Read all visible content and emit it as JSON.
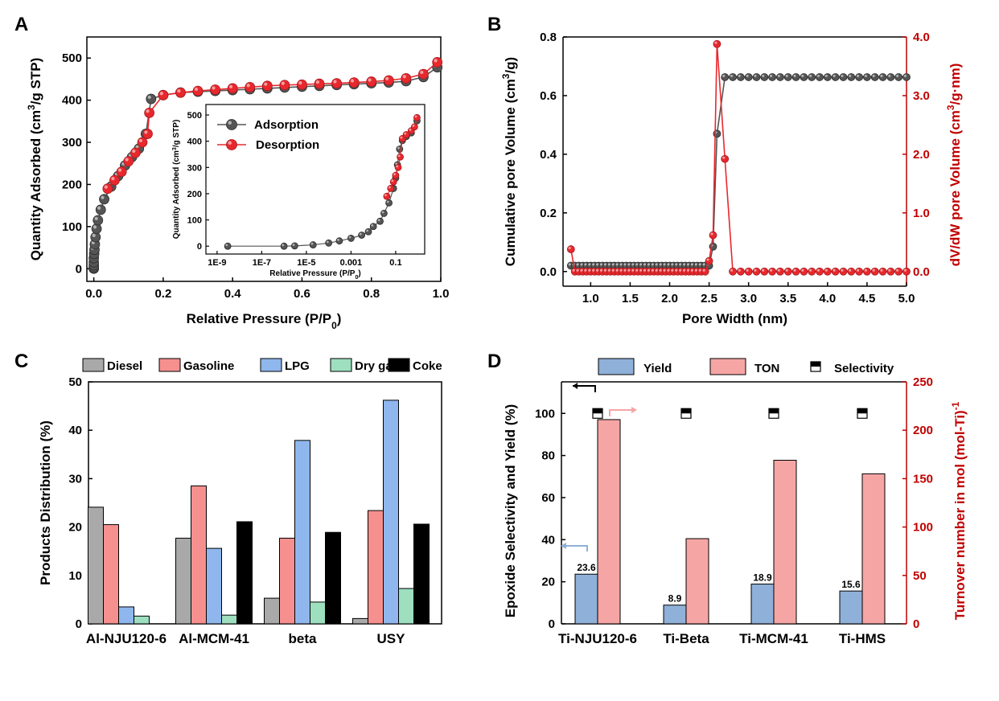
{
  "colors": {
    "gray_series": "#555555",
    "red_series": "#e8282d",
    "dark_red": "#c00000",
    "diesel": "#a9a9a9",
    "gasoline": "#f6908f",
    "lpg": "#8fb7ee",
    "dry_gas": "#9ddfbf",
    "coke": "#000000",
    "yield": "#8fb0d8",
    "ton": "#f6a5a5"
  },
  "panels": {
    "A": {
      "letter": "A"
    },
    "B": {
      "letter": "B"
    },
    "C": {
      "letter": "C"
    },
    "D": {
      "letter": "D"
    }
  },
  "chart_data": [
    {
      "id": "A",
      "type": "line",
      "xlabel": "Relative Pressure (P/P0)",
      "ylabel": "Quantity Adsorbed (cm3/g STP)",
      "xlim": [
        -0.02,
        1.0
      ],
      "ylim": [
        -30,
        550
      ],
      "xticks": [
        "0.0",
        "0.2",
        "0.4",
        "0.6",
        "0.8",
        "1.0"
      ],
      "yticks": [
        "0",
        "100",
        "200",
        "300",
        "400",
        "500"
      ],
      "legend": [
        "Adsorption",
        "Desorption"
      ],
      "series": [
        {
          "name": "Adsorption",
          "x": [
            0.0,
            0.0,
            0.0,
            0.0,
            0.0,
            0.001,
            0.002,
            0.003,
            0.005,
            0.008,
            0.012,
            0.02,
            0.03,
            0.05,
            0.07,
            0.09,
            0.11,
            0.13,
            0.15,
            0.165,
            0.2,
            0.25,
            0.3,
            0.35,
            0.4,
            0.45,
            0.5,
            0.55,
            0.6,
            0.65,
            0.7,
            0.75,
            0.8,
            0.85,
            0.9,
            0.95,
            0.99
          ],
          "y": [
            0,
            3,
            8,
            15,
            25,
            35,
            45,
            58,
            75,
            95,
            115,
            140,
            165,
            195,
            220,
            245,
            265,
            285,
            320,
            403,
            412,
            418,
            420,
            422,
            424,
            426,
            428,
            430,
            432,
            434,
            436,
            438,
            440,
            442,
            445,
            455,
            478
          ]
        },
        {
          "name": "Desorption",
          "x": [
            0.04,
            0.06,
            0.08,
            0.1,
            0.12,
            0.14,
            0.155,
            0.16,
            0.2,
            0.25,
            0.3,
            0.35,
            0.4,
            0.45,
            0.5,
            0.55,
            0.6,
            0.65,
            0.7,
            0.75,
            0.8,
            0.85,
            0.9,
            0.95,
            0.99
          ],
          "y": [
            190,
            210,
            230,
            255,
            275,
            300,
            320,
            370,
            412,
            418,
            422,
            425,
            428,
            431,
            434,
            436,
            437,
            439,
            440,
            442,
            444,
            447,
            452,
            462,
            490
          ]
        }
      ]
    },
    {
      "id": "A-inset",
      "type": "line",
      "xscale": "log",
      "xlabel": "Relative Pressure (P/P0)",
      "ylabel": "Quantity Adsorbed (cm3/g STP)",
      "xticks": [
        "1E-9",
        "1E-7",
        "1E-5",
        "0.001",
        "0.1"
      ],
      "yticks": [
        "0",
        "100",
        "200",
        "300",
        "400",
        "500"
      ],
      "ylim": [
        -30,
        540
      ],
      "series": [
        {
          "name": "Adsorption",
          "x": [
            3e-09,
            1e-06,
            3e-06,
            2e-05,
            0.0001,
            0.0003,
            0.001,
            0.003,
            0.006,
            0.01,
            0.02,
            0.03,
            0.05,
            0.08,
            0.1,
            0.12,
            0.15,
            0.2,
            0.3,
            0.5,
            0.9
          ],
          "y": [
            0,
            0,
            1,
            5,
            12,
            20,
            30,
            42,
            55,
            75,
            95,
            125,
            165,
            220,
            260,
            310,
            370,
            403,
            418,
            432,
            478
          ]
        },
        {
          "name": "Desorption",
          "x": [
            0.04,
            0.06,
            0.08,
            0.1,
            0.13,
            0.16,
            0.2,
            0.3,
            0.5,
            0.7,
            0.9
          ],
          "y": [
            190,
            220,
            245,
            270,
            300,
            340,
            410,
            425,
            440,
            455,
            490
          ]
        }
      ]
    },
    {
      "id": "B",
      "type": "line",
      "xlabel": "Pore Width (nm)",
      "ylabel": "Cumulative pore Volume (cm3/g)",
      "ylabel_right": "dV/dW pore Volume (cm3/g·nm)",
      "xlim": [
        0.65,
        5.0
      ],
      "ylim": [
        -0.05,
        0.8
      ],
      "ylim_right": [
        -0.25,
        4.0
      ],
      "xticks": [
        "1.0",
        "1.5",
        "2.0",
        "2.5",
        "3.0",
        "3.5",
        "4.0",
        "4.5",
        "5.0"
      ],
      "yticks": [
        "0.0",
        "0.2",
        "0.4",
        "0.6",
        "0.8"
      ],
      "yticks_right": [
        "0.0",
        "1.0",
        "2.0",
        "3.0",
        "4.0"
      ],
      "series": [
        {
          "name": "Cumulative",
          "axis": "left",
          "x": [
            0.75,
            0.8,
            0.85,
            0.9,
            0.95,
            1.0,
            1.05,
            1.1,
            1.15,
            1.2,
            1.25,
            1.3,
            1.35,
            1.4,
            1.45,
            1.5,
            1.55,
            1.6,
            1.65,
            1.7,
            1.75,
            1.8,
            1.85,
            1.9,
            1.95,
            2.0,
            2.05,
            2.1,
            2.15,
            2.2,
            2.25,
            2.3,
            2.35,
            2.4,
            2.45,
            2.5,
            2.55,
            2.6,
            2.7,
            2.8,
            2.9,
            3.0,
            3.1,
            3.2,
            3.3,
            3.4,
            3.5,
            3.6,
            3.7,
            3.8,
            3.9,
            4.0,
            4.1,
            4.2,
            4.3,
            4.4,
            4.5,
            4.6,
            4.7,
            4.8,
            4.9,
            5.0
          ],
          "y": [
            0.02,
            0.02,
            0.02,
            0.02,
            0.02,
            0.02,
            0.02,
            0.02,
            0.02,
            0.02,
            0.02,
            0.02,
            0.02,
            0.02,
            0.02,
            0.02,
            0.02,
            0.02,
            0.02,
            0.02,
            0.02,
            0.02,
            0.02,
            0.02,
            0.02,
            0.02,
            0.02,
            0.02,
            0.02,
            0.02,
            0.02,
            0.02,
            0.02,
            0.02,
            0.02,
            0.02,
            0.085,
            0.47,
            0.663,
            0.663,
            0.663,
            0.663,
            0.663,
            0.663,
            0.663,
            0.663,
            0.663,
            0.663,
            0.663,
            0.663,
            0.663,
            0.663,
            0.663,
            0.663,
            0.663,
            0.663,
            0.663,
            0.663,
            0.663,
            0.663,
            0.663,
            0.663
          ]
        },
        {
          "name": "dV/dW",
          "axis": "right",
          "x": [
            0.75,
            0.8,
            0.85,
            0.9,
            0.95,
            1.0,
            1.05,
            1.1,
            1.15,
            1.2,
            1.25,
            1.3,
            1.35,
            1.4,
            1.45,
            1.5,
            1.55,
            1.6,
            1.65,
            1.7,
            1.75,
            1.8,
            1.85,
            1.9,
            1.95,
            2.0,
            2.05,
            2.1,
            2.15,
            2.2,
            2.25,
            2.3,
            2.35,
            2.4,
            2.45,
            2.5,
            2.55,
            2.6,
            2.7,
            2.8,
            2.9,
            3.0,
            3.1,
            3.2,
            3.3,
            3.4,
            3.5,
            3.6,
            3.7,
            3.8,
            3.9,
            4.0,
            4.1,
            4.2,
            4.3,
            4.4,
            4.5,
            4.6,
            4.7,
            4.8,
            4.9,
            5.0
          ],
          "y": [
            0.38,
            0.0,
            0.0,
            0.0,
            0.0,
            0.0,
            0.0,
            0.0,
            0.0,
            0.0,
            0.0,
            0.0,
            0.0,
            0.0,
            0.0,
            0.0,
            0.0,
            0.0,
            0.0,
            0.0,
            0.0,
            0.0,
            0.0,
            0.0,
            0.0,
            0.0,
            0.0,
            0.0,
            0.0,
            0.0,
            0.0,
            0.0,
            0.0,
            0.0,
            0.0,
            0.18,
            0.62,
            3.88,
            1.92,
            0.0,
            0.0,
            0.0,
            0.0,
            0.0,
            0.0,
            0.0,
            0.0,
            0.0,
            0.0,
            0.0,
            0.0,
            0.0,
            0.0,
            0.0,
            0.0,
            0.0,
            0.0,
            0.0,
            0.0,
            0.0,
            0.0,
            0.0
          ]
        }
      ]
    },
    {
      "id": "C",
      "type": "bar",
      "ylabel": "Products Distribution (%)",
      "ylim": [
        0,
        50
      ],
      "yticks": [
        "0",
        "10",
        "20",
        "30",
        "40",
        "50"
      ],
      "categories": [
        "Al-NJU120-6",
        "Al-MCM-41",
        "beta",
        "USY"
      ],
      "series": [
        {
          "name": "Diesel",
          "values": [
            24.1,
            17.7,
            5.3,
            1.1
          ]
        },
        {
          "name": "Gasoline",
          "values": [
            20.5,
            28.5,
            17.7,
            23.4
          ]
        },
        {
          "name": "LPG",
          "values": [
            3.5,
            15.6,
            37.9,
            46.2
          ]
        },
        {
          "name": "Dry gas",
          "values": [
            1.6,
            1.8,
            4.5,
            7.3
          ]
        },
        {
          "name": "Coke",
          "values": [
            0.0,
            21.1,
            18.9,
            20.6
          ]
        }
      ]
    },
    {
      "id": "D",
      "type": "bar",
      "ylabel": "Epoxide Selectivity and Yield (%)",
      "ylabel_right": "Turnover number in mol (mol-Ti)-1",
      "ylim": [
        0,
        115
      ],
      "ylim_right": [
        0,
        250
      ],
      "yticks": [
        "0",
        "20",
        "40",
        "60",
        "80",
        "100"
      ],
      "yticks_right": [
        "0",
        "50",
        "100",
        "150",
        "200",
        "250"
      ],
      "categories": [
        "Ti-NJU120-6",
        "Ti-Beta",
        "Ti-MCM-41",
        "Ti-HMS"
      ],
      "legend": [
        "Yield",
        "TON",
        "Selectivity"
      ],
      "series": [
        {
          "name": "Yield",
          "axis": "left",
          "values": [
            23.6,
            8.9,
            18.9,
            15.6
          ],
          "labels": [
            "23.6",
            "8.9",
            "18.9",
            "15.6"
          ]
        },
        {
          "name": "TON",
          "axis": "right",
          "values": [
            211,
            88,
            169,
            155
          ]
        },
        {
          "name": "Selectivity",
          "axis": "left",
          "values": [
            100,
            100,
            100,
            100
          ]
        }
      ]
    }
  ]
}
